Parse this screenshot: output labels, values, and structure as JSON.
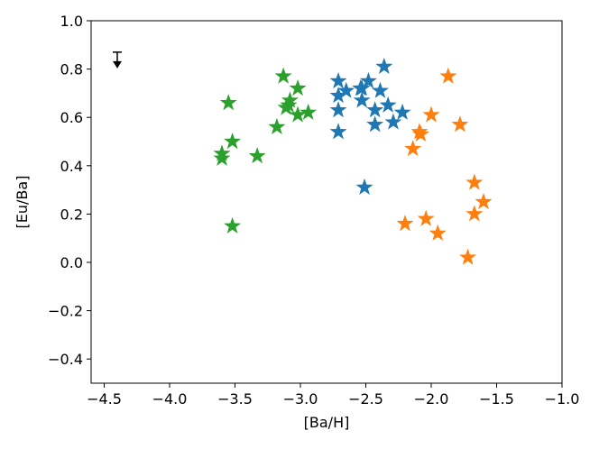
{
  "chart_data": {
    "type": "scatter",
    "xlabel": "[Ba/H]",
    "ylabel": "[Eu/Ba]",
    "xlim": [
      -4.6,
      -1.0
    ],
    "ylim": [
      -0.5,
      1.0
    ],
    "xticks": [
      {
        "value": -4.5,
        "label": "−4.5"
      },
      {
        "value": -4.0,
        "label": "−4.0"
      },
      {
        "value": -3.5,
        "label": "−3.5"
      },
      {
        "value": -3.0,
        "label": "−3.0"
      },
      {
        "value": -2.5,
        "label": "−2.5"
      },
      {
        "value": -2.0,
        "label": "−2.0"
      },
      {
        "value": -1.5,
        "label": "−1.5"
      },
      {
        "value": -1.0,
        "label": "−1.0"
      }
    ],
    "yticks": [
      {
        "value": -0.4,
        "label": "−0.4"
      },
      {
        "value": -0.2,
        "label": "−0.2"
      },
      {
        "value": 0,
        "label": "0.0"
      },
      0.2,
      0.4,
      0.6,
      0.8,
      {
        "value": 1.0,
        "label": "1.0"
      }
    ],
    "marker": "star",
    "series": [
      {
        "color": "#2ca02c",
        "x": [
          -3.55,
          -3.52,
          -3.6,
          -3.6,
          -3.33,
          -3.52,
          -3.13,
          -3.02,
          -3.08,
          -3.11,
          -3.18,
          -3.02,
          -2.94,
          -3.09
        ],
        "values": [
          0.66,
          0.5,
          0.45,
          0.43,
          0.44,
          0.15,
          0.77,
          0.72,
          0.67,
          0.64,
          0.56,
          0.61,
          0.62,
          0.65
        ]
      },
      {
        "color": "#1f77b4",
        "x": [
          -2.71,
          -2.71,
          -2.65,
          -2.71,
          -2.71,
          -2.54,
          -2.48,
          -2.53,
          -2.36,
          -2.39,
          -2.43,
          -2.33,
          -2.29,
          -2.22,
          -2.43,
          -2.51,
          -2.53
        ],
        "values": [
          0.75,
          0.69,
          0.71,
          0.63,
          0.54,
          0.72,
          0.75,
          0.67,
          0.81,
          0.71,
          0.63,
          0.65,
          0.58,
          0.62,
          0.57,
          0.31,
          0.72
        ]
      },
      {
        "color": "#ff7f0e",
        "x": [
          -1.87,
          -1.78,
          -2.0,
          -2.09,
          -2.08,
          -2.14,
          -1.67,
          -1.6,
          -1.67,
          -2.2,
          -2.04,
          -1.95,
          -1.72
        ],
        "values": [
          0.77,
          0.57,
          0.61,
          0.54,
          0.53,
          0.47,
          0.33,
          0.25,
          0.2,
          0.16,
          0.18,
          0.12,
          0.02
        ]
      }
    ],
    "upper_limit": {
      "x": -4.4,
      "y": 0.87,
      "color": "#000000"
    }
  }
}
